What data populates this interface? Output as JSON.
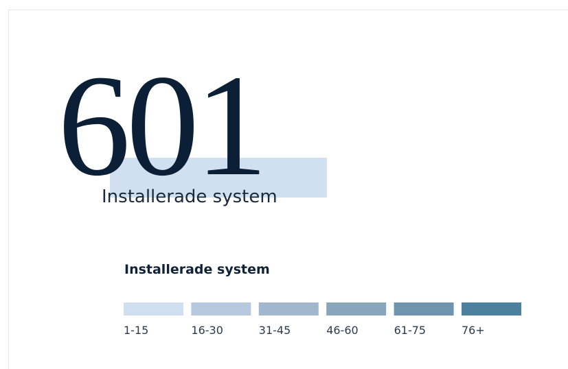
{
  "stat": {
    "value": "601",
    "label": "Installerade system"
  },
  "legend": {
    "title": "Installerade system",
    "items": [
      {
        "label": "1-15",
        "color": "#d0dff0"
      },
      {
        "label": "16-30",
        "color": "#b6c9de"
      },
      {
        "label": "31-45",
        "color": "#a0b7cd"
      },
      {
        "label": "46-60",
        "color": "#87a6bc"
      },
      {
        "label": "61-75",
        "color": "#6f95ae"
      },
      {
        "label": "76+",
        "color": "#4b809e"
      }
    ]
  }
}
